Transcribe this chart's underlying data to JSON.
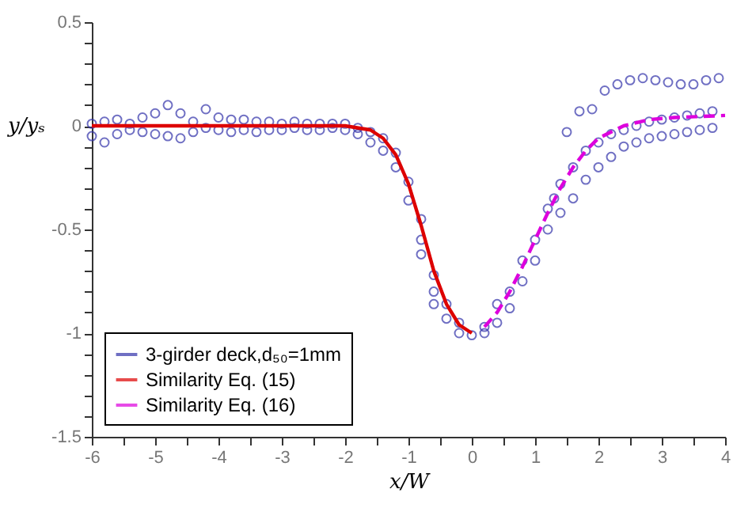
{
  "chart_data": {
    "type": "scatter",
    "xlabel": "x/W",
    "ylabel": "y/yₛ",
    "xlim": [
      -6,
      4
    ],
    "ylim": [
      -1.5,
      0.5
    ],
    "xticks": [
      -6,
      {
        "value": -5.5,
        "label": null
      },
      -5,
      {
        "value": -4.5,
        "label": null
      },
      -4,
      {
        "value": -3.5,
        "label": null
      },
      -3,
      {
        "value": -2.5,
        "label": null
      },
      -2,
      {
        "value": -1.5,
        "label": null
      },
      -1,
      {
        "value": -0.5,
        "label": null
      },
      0,
      {
        "value": 0.5,
        "label": null
      },
      1,
      {
        "value": 1.5,
        "label": null
      },
      2,
      {
        "value": 2.5,
        "label": null
      },
      3,
      {
        "value": 3.5,
        "label": null
      },
      4
    ],
    "yticks": [
      -1.5,
      {
        "value": -1.4,
        "label": null
      },
      {
        "value": -1.3,
        "label": null
      },
      {
        "value": -1.2,
        "label": null
      },
      {
        "value": -1.1,
        "label": null
      },
      -1,
      {
        "value": -0.9,
        "label": null
      },
      {
        "value": -0.8,
        "label": null
      },
      {
        "value": -0.7,
        "label": null
      },
      {
        "value": -0.6,
        "label": null
      },
      -0.5,
      {
        "value": -0.4,
        "label": null
      },
      {
        "value": -0.3,
        "label": null
      },
      {
        "value": -0.2,
        "label": null
      },
      {
        "value": -0.1,
        "label": null
      },
      0,
      {
        "value": 0.1,
        "label": null
      },
      {
        "value": 0.2,
        "label": null
      },
      {
        "value": 0.3,
        "label": null
      },
      {
        "value": 0.4,
        "label": null
      },
      0.5
    ],
    "grid": false,
    "legend": "bottom left",
    "series": [
      {
        "name": "3-girder deck,d₅₀=1mm",
        "marker": "circle",
        "color": "#3333aa",
        "x": [
          -6,
          -6,
          -5.8,
          -5.8,
          -5.6,
          -5.6,
          -5.4,
          -5.4,
          -5.2,
          -5.2,
          -5,
          -5,
          -4.8,
          -4.8,
          -4.6,
          -4.6,
          -4.4,
          -4.4,
          -4.2,
          -4.2,
          -4,
          -4,
          -3.8,
          -3.8,
          -3.6,
          -3.6,
          -3.4,
          -3.4,
          -3.2,
          -3.2,
          -3,
          -3,
          -2.8,
          -2.8,
          -2.6,
          -2.6,
          -2.4,
          -2.4,
          -2.2,
          -2.2,
          -2,
          -2,
          -1.8,
          -1.8,
          -1.6,
          -1.6,
          -1.4,
          -1.4,
          -1.2,
          -1.2,
          -1,
          -1,
          -0.8,
          -0.8,
          -0.8,
          -0.6,
          -0.6,
          -0.6,
          -0.4,
          -0.4,
          -0.2,
          -0.2,
          0,
          0.2,
          0.2,
          0.4,
          0.4,
          0.6,
          0.6,
          0.8,
          0.8,
          1,
          1,
          1.2,
          1.2,
          1.3,
          1.4,
          1.4,
          1.5,
          1.6,
          1.6,
          1.7,
          1.8,
          1.8,
          1.9,
          2,
          2,
          2.1,
          2.2,
          2.2,
          2.3,
          2.4,
          2.4,
          2.5,
          2.6,
          2.6,
          2.7,
          2.8,
          2.8,
          2.9,
          3,
          3,
          3.1,
          3.2,
          3.2,
          3.3,
          3.4,
          3.4,
          3.5,
          3.6,
          3.6,
          3.7,
          3.8,
          3.8,
          3.9
        ],
        "values": [
          -0.05,
          0.01,
          -0.08,
          0.02,
          -0.04,
          0.03,
          -0.02,
          0.01,
          0.04,
          -0.03,
          0.06,
          -0.04,
          0.1,
          -0.05,
          0.06,
          -0.06,
          0.02,
          -0.03,
          0.08,
          -0.01,
          0.04,
          -0.02,
          0.03,
          -0.03,
          0.03,
          -0.02,
          0.02,
          -0.03,
          0.02,
          -0.02,
          0.01,
          -0.02,
          0.02,
          -0.01,
          0.01,
          -0.02,
          0.01,
          -0.02,
          0.01,
          -0.01,
          0.01,
          -0.02,
          -0.01,
          -0.04,
          -0.03,
          -0.08,
          -0.06,
          -0.12,
          -0.13,
          -0.2,
          -0.27,
          -0.36,
          -0.45,
          -0.55,
          -0.62,
          -0.72,
          -0.8,
          -0.86,
          -0.86,
          -0.93,
          -0.95,
          -1.0,
          -1.01,
          -0.97,
          -1.0,
          -0.86,
          -0.95,
          -0.8,
          -0.88,
          -0.65,
          -0.75,
          -0.55,
          -0.65,
          -0.4,
          -0.5,
          -0.35,
          -0.28,
          -0.42,
          -0.03,
          -0.2,
          -0.35,
          0.07,
          -0.12,
          -0.26,
          0.08,
          -0.08,
          -0.2,
          0.17,
          -0.04,
          -0.15,
          0.2,
          -0.02,
          -0.1,
          0.22,
          0.0,
          -0.08,
          0.23,
          0.02,
          -0.06,
          0.22,
          0.03,
          -0.05,
          0.21,
          0.04,
          -0.04,
          0.2,
          0.05,
          -0.03,
          0.2,
          0.06,
          -0.02,
          0.22,
          0.07,
          -0.01,
          0.23
        ]
      },
      {
        "name": "Similarity Eq. (15)",
        "type": "line",
        "line_style": "solid",
        "color": "#dd0000",
        "x": [
          -6,
          -2,
          -1.6,
          -1.4,
          -1.2,
          -1,
          -0.8,
          -0.6,
          -0.4,
          -0.2,
          0
        ],
        "values": [
          0,
          0,
          -0.02,
          -0.06,
          -0.14,
          -0.28,
          -0.48,
          -0.7,
          -0.86,
          -0.96,
          -1.0
        ]
      },
      {
        "name": "Similarity Eq. (16)",
        "type": "line",
        "line_style": "dashed",
        "color": "#dd00dd",
        "x": [
          0.2,
          0.4,
          0.6,
          0.8,
          1,
          1.2,
          1.4,
          1.6,
          1.8,
          2,
          2.4,
          2.8,
          3.2,
          4
        ],
        "values": [
          -0.97,
          -0.9,
          -0.8,
          -0.68,
          -0.55,
          -0.42,
          -0.3,
          -0.2,
          -0.12,
          -0.06,
          0.0,
          0.03,
          0.04,
          0.05
        ]
      }
    ]
  }
}
